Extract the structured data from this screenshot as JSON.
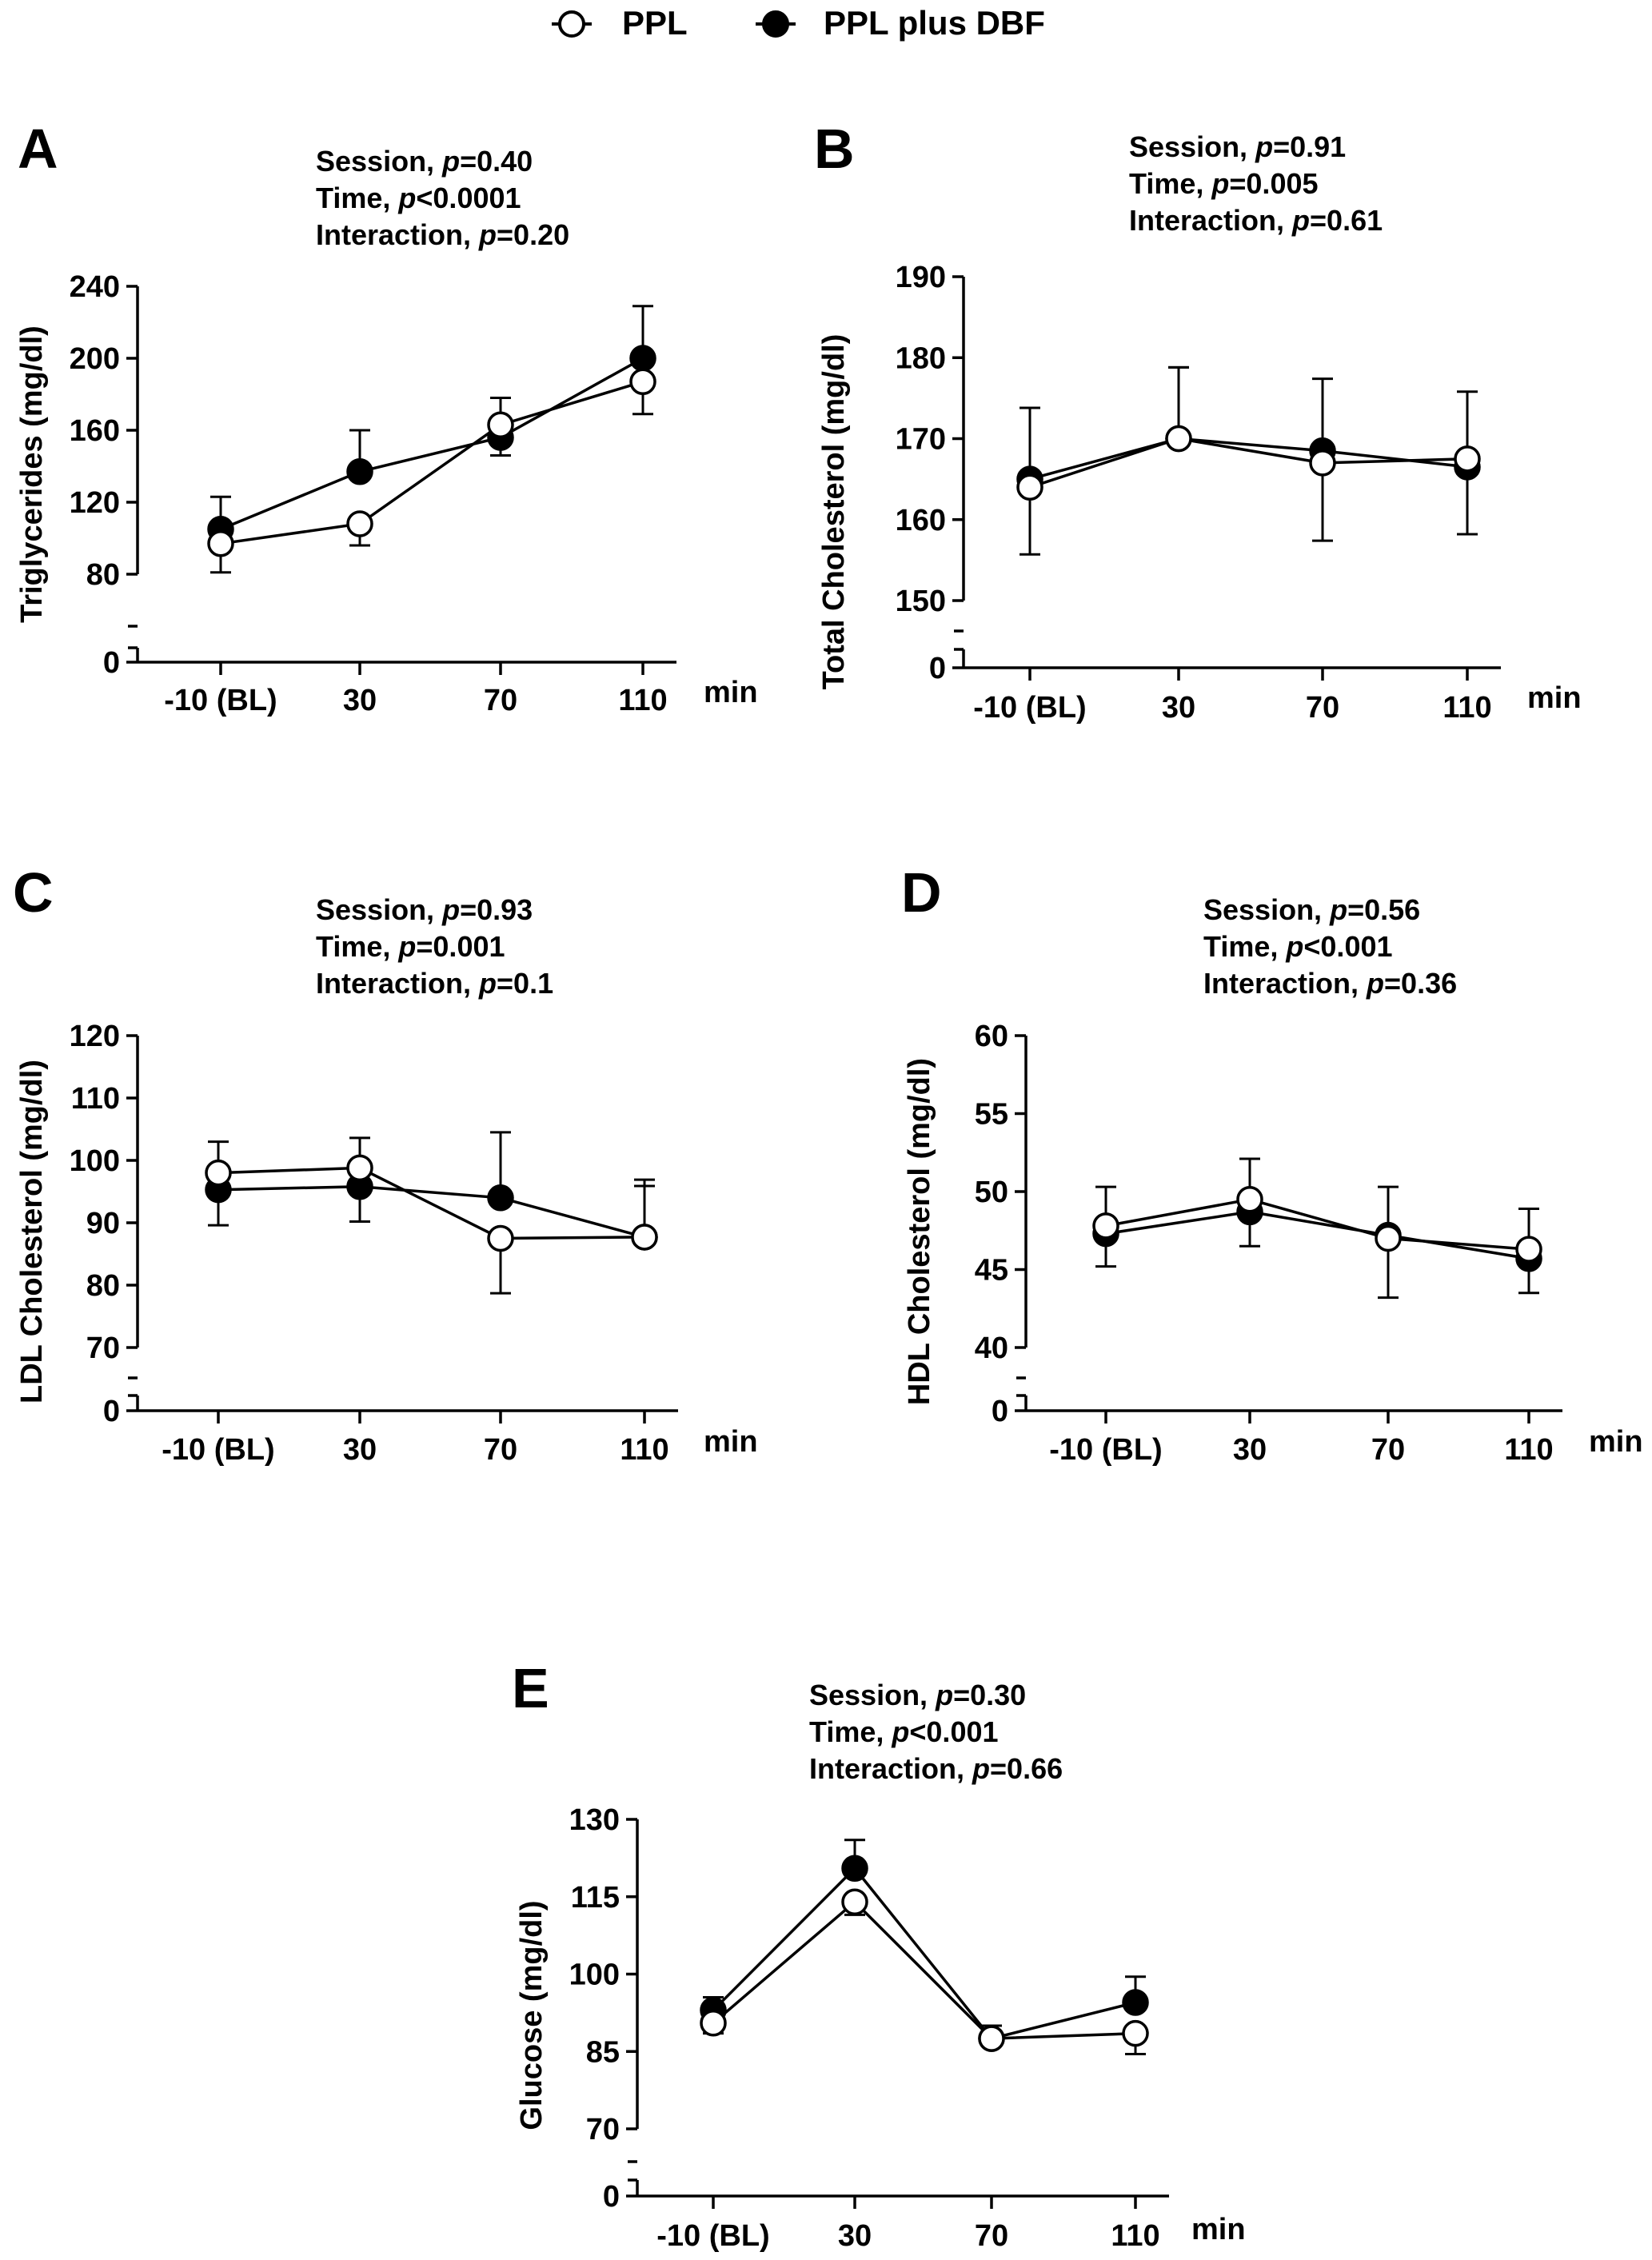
{
  "legend": {
    "series": [
      {
        "name": "PPL",
        "marker": "open-circle"
      },
      {
        "name": "PPL plus DBF",
        "marker": "filled-circle"
      }
    ]
  },
  "chart_data": [
    {
      "panel": "A",
      "type": "line",
      "stats": [
        {
          "pre": "Session, ",
          "p": "p",
          "post": "=0.40"
        },
        {
          "pre": "Time, ",
          "p": "p",
          "post": "<0.0001"
        },
        {
          "pre": "Interaction, ",
          "p": "p",
          "post": "=0.20"
        }
      ],
      "ylabel": "Triglycerides  (mg/dl)",
      "xlabel": "min",
      "categories": [
        "-10 (BL)",
        "30",
        "70",
        "110"
      ],
      "yticks": [
        80,
        120,
        160,
        200,
        240
      ],
      "ylim": [
        80,
        240
      ],
      "zero_tick": "0",
      "series": [
        {
          "name": "PPL",
          "fill": "open",
          "values": [
            97,
            108,
            163,
            187
          ],
          "err": [
            16,
            12,
            15,
            18
          ]
        },
        {
          "name": "PPL plus DBF",
          "fill": "filled",
          "values": [
            105,
            137,
            156,
            200
          ],
          "err": [
            18,
            23,
            10,
            29
          ]
        }
      ]
    },
    {
      "panel": "B",
      "type": "line",
      "stats": [
        {
          "pre": "Session, ",
          "p": "p",
          "post": "=0.91"
        },
        {
          "pre": "Time, ",
          "p": "p",
          "post": "=0.005"
        },
        {
          "pre": " Interaction, ",
          "p": "p",
          "post": "=0.61"
        }
      ],
      "ylabel": "Total Cholesterol  (mg/dl)",
      "xlabel": "min",
      "categories": [
        "-10 (BL)",
        "30",
        "70",
        "110"
      ],
      "yticks": [
        150,
        160,
        170,
        180,
        190
      ],
      "ylim": [
        150,
        190
      ],
      "zero_tick": "0",
      "series": [
        {
          "name": "PPL",
          "fill": "open",
          "values": [
            164,
            170,
            167,
            167.5
          ],
          "err": [
            8.3,
            8.8,
            9.6,
            8.3
          ]
        },
        {
          "name": "PPL plus DBF",
          "fill": "filled",
          "values": [
            165,
            170,
            168.5,
            166.5
          ],
          "err": [
            8.8,
            8.8,
            8.9,
            8.3
          ]
        }
      ]
    },
    {
      "panel": "C",
      "type": "line",
      "stats": [
        {
          "pre": "Session, ",
          "p": "p",
          "post": "=0.93"
        },
        {
          "pre": "Time, ",
          "p": "p",
          "post": "=0.001"
        },
        {
          "pre": " Interaction, ",
          "p": "p",
          "post": "=0.1"
        }
      ],
      "ylabel": "LDL Cholesterol (mg/dl)",
      "xlabel": "min",
      "categories": [
        "-10 (BL)",
        "30",
        "70",
        "110"
      ],
      "yticks": [
        70,
        80,
        90,
        100,
        110,
        120
      ],
      "ylim": [
        70,
        120
      ],
      "zero_tick": "0",
      "series": [
        {
          "name": "PPL",
          "fill": "open",
          "values": [
            98,
            98.8,
            87.5,
            87.7
          ],
          "err": [
            5,
            4.8,
            8.8,
            9.2
          ]
        },
        {
          "name": "PPL plus DBF",
          "fill": "filled",
          "values": [
            95.3,
            95.8,
            94,
            87.7
          ],
          "err": [
            5.7,
            5.6,
            10.5,
            8.2
          ]
        }
      ]
    },
    {
      "panel": "D",
      "type": "line",
      "stats": [
        {
          "pre": "Session, ",
          "p": "p",
          "post": "=0.56"
        },
        {
          "pre": "Time, ",
          "p": "p",
          "post": "<0.001"
        },
        {
          "pre": " Interaction, ",
          "p": "p",
          "post": "=0.36"
        }
      ],
      "ylabel": "HDL Cholesterol (mg/dl)",
      "xlabel": "min",
      "categories": [
        "-10 (BL)",
        "30",
        "70",
        "110"
      ],
      "yticks": [
        40,
        45,
        50,
        55,
        60
      ],
      "ylim": [
        40,
        60
      ],
      "zero_tick": "0",
      "series": [
        {
          "name": "PPL",
          "fill": "open",
          "values": [
            47.8,
            49.5,
            47,
            46.3
          ],
          "err": [
            2.5,
            2.6,
            3.8,
            2.6
          ]
        },
        {
          "name": "PPL plus DBF",
          "fill": "filled",
          "values": [
            47.3,
            48.7,
            47.2,
            45.7
          ],
          "err": [
            2.1,
            2.2,
            3.1,
            2.2
          ]
        }
      ]
    },
    {
      "panel": "E",
      "type": "line",
      "stats": [
        {
          "pre": "Session, ",
          "p": "p",
          "post": "=0.30"
        },
        {
          "pre": "Time, ",
          "p": "p",
          "post": "<0.001"
        },
        {
          "pre": " Interaction, ",
          "p": "p",
          "post": "=0.66"
        }
      ],
      "ylabel": "Glucose (mg/dl)",
      "xlabel": "min",
      "categories": [
        "-10 (BL)",
        "30",
        "70",
        "110"
      ],
      "yticks": [
        70,
        85,
        100,
        115,
        130
      ],
      "ylim": [
        70,
        130
      ],
      "zero_tick": "0",
      "series": [
        {
          "name": "PPL",
          "fill": "open",
          "values": [
            90.5,
            114,
            87.5,
            88.5
          ],
          "err": [
            2,
            2.5,
            2.5,
            4
          ]
        },
        {
          "name": "PPL plus DBF",
          "fill": "filled",
          "values": [
            93,
            120.5,
            87.5,
            94.5
          ],
          "err": [
            2.5,
            5.5,
            1.5,
            5
          ]
        }
      ]
    }
  ]
}
